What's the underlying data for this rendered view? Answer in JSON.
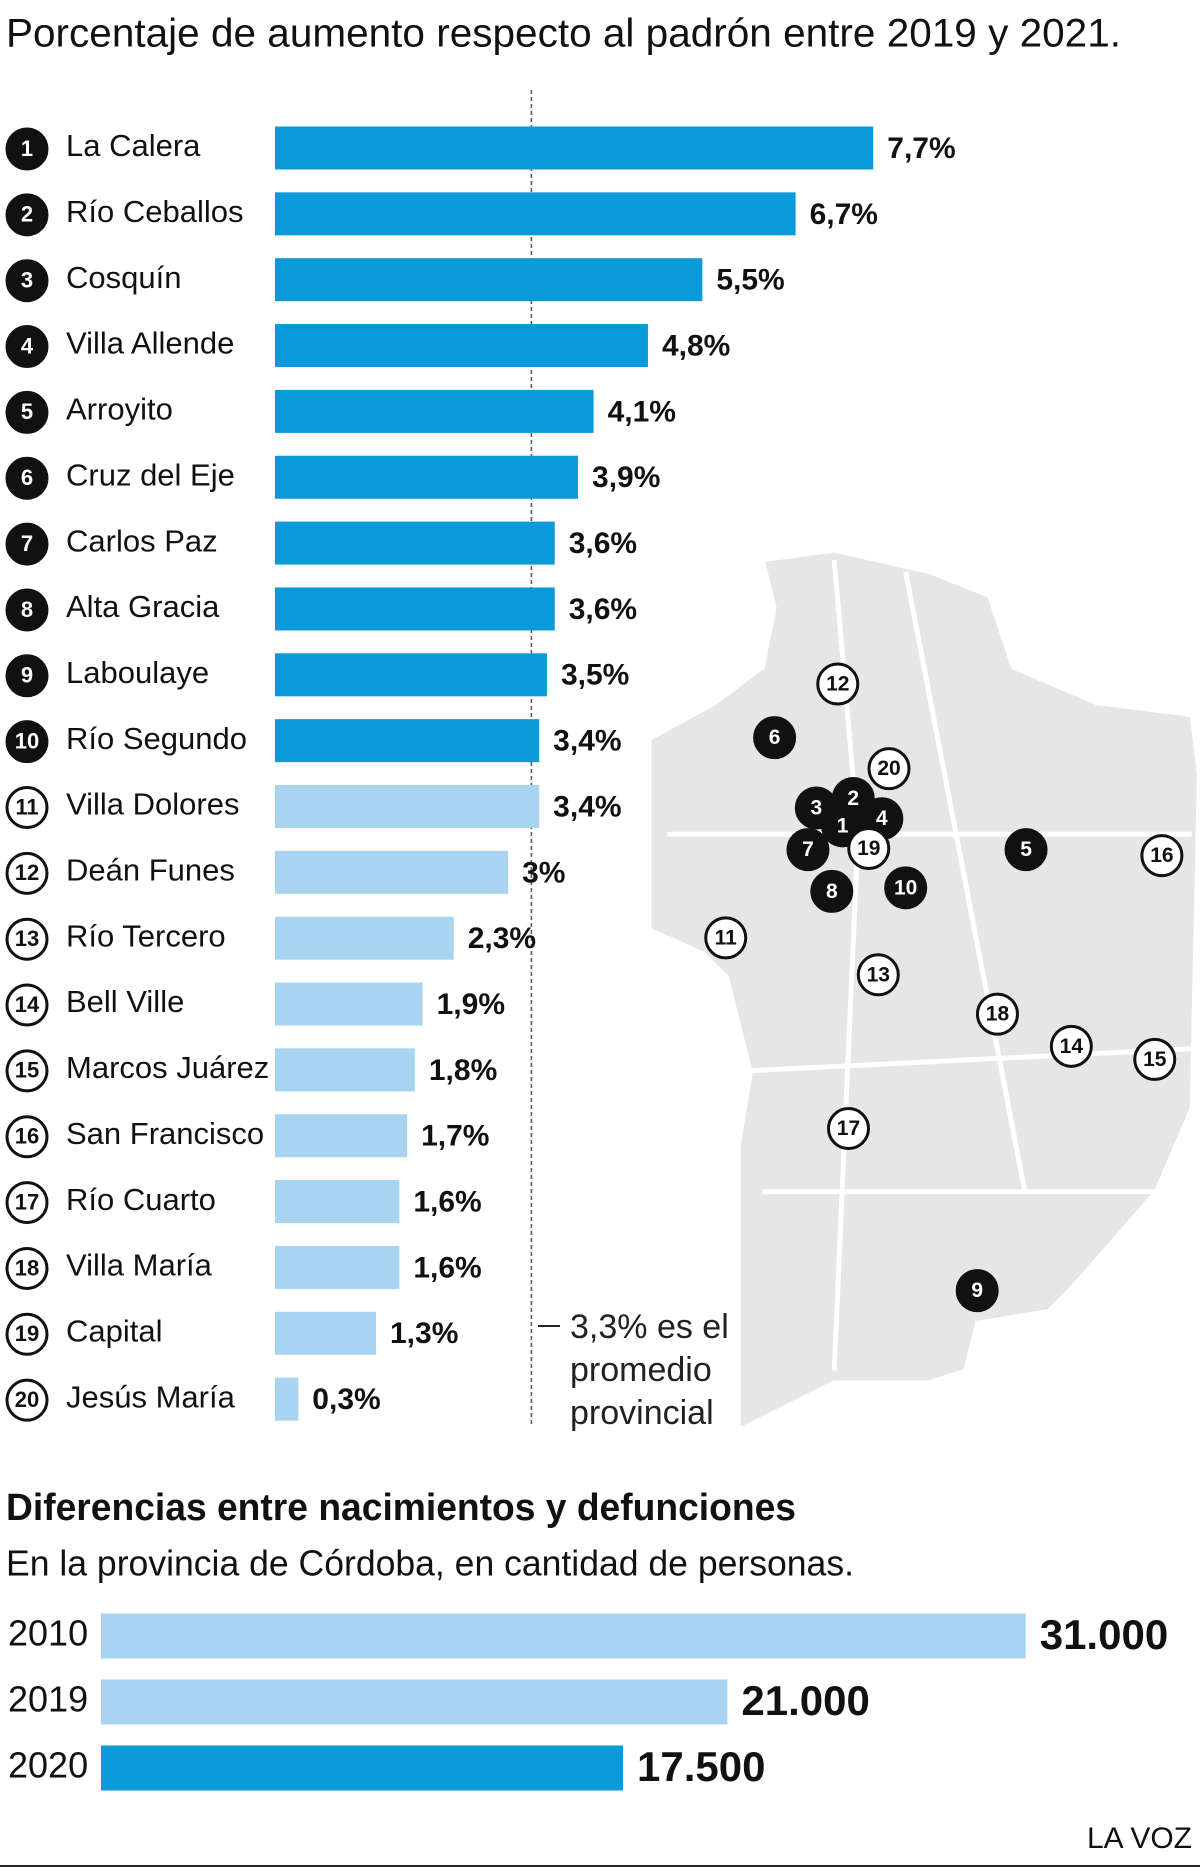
{
  "chart_data": [
    {
      "type": "bar",
      "title": "Porcentaje de aumento respecto al padrón entre 2019 y 2021.",
      "ranks": [
        1,
        2,
        3,
        4,
        5,
        6,
        7,
        8,
        9,
        10,
        11,
        12,
        13,
        14,
        15,
        16,
        17,
        18,
        19,
        20
      ],
      "categories": [
        "La Calera",
        "Río Ceballos",
        "Cosquín",
        "Villa Allende",
        "Arroyito",
        "Cruz del Eje",
        "Carlos Paz",
        "Alta Gracia",
        "Laboulaye",
        "Río Segundo",
        "Villa Dolores",
        "Deán Funes",
        "Río Tercero",
        "Bell Ville",
        "Marcos Juárez",
        "San Francisco",
        "Río Cuarto",
        "Villa María",
        "Capital",
        "Jesús María"
      ],
      "values": [
        7.7,
        6.7,
        5.5,
        4.8,
        4.1,
        3.9,
        3.6,
        3.6,
        3.5,
        3.4,
        3.4,
        3,
        2.3,
        1.9,
        1.8,
        1.7,
        1.6,
        1.6,
        1.3,
        0.3
      ],
      "value_labels": [
        "7,7%",
        "6,7%",
        "5,5%",
        "4,8%",
        "4,1%",
        "3,9%",
        "3,6%",
        "3,6%",
        "3,5%",
        "3,4%",
        "3,4%",
        "3%",
        "2,3%",
        "1,9%",
        "1,8%",
        "1,7%",
        "1,6%",
        "1,6%",
        "1,3%",
        "0,3%"
      ],
      "colors": [
        "#0a9ad9",
        "#0a9ad9",
        "#0a9ad9",
        "#0a9ad9",
        "#0a9ad9",
        "#0a9ad9",
        "#0a9ad9",
        "#0a9ad9",
        "#0a9ad9",
        "#0a9ad9",
        "#a8d3f1",
        "#a8d3f1",
        "#a8d3f1",
        "#a8d3f1",
        "#a8d3f1",
        "#a8d3f1",
        "#a8d3f1",
        "#a8d3f1",
        "#a8d3f1",
        "#a8d3f1"
      ],
      "reference": {
        "value": 3.3,
        "label": "3,3% es el promedio provincial"
      }
    },
    {
      "type": "bar",
      "title": "Diferencias entre nacimientos y defunciones",
      "subtitle": "En la provincia de Córdoba, en cantidad de personas.",
      "categories": [
        "2010",
        "2019",
        "2020"
      ],
      "values": [
        31000,
        21000,
        17500
      ],
      "value_labels": [
        "31.000",
        "21.000",
        "17.500"
      ],
      "colors": [
        "#a8d3f1",
        "#a8d3f1",
        "#0a9ad9"
      ]
    }
  ],
  "credit": "LA VOZ"
}
